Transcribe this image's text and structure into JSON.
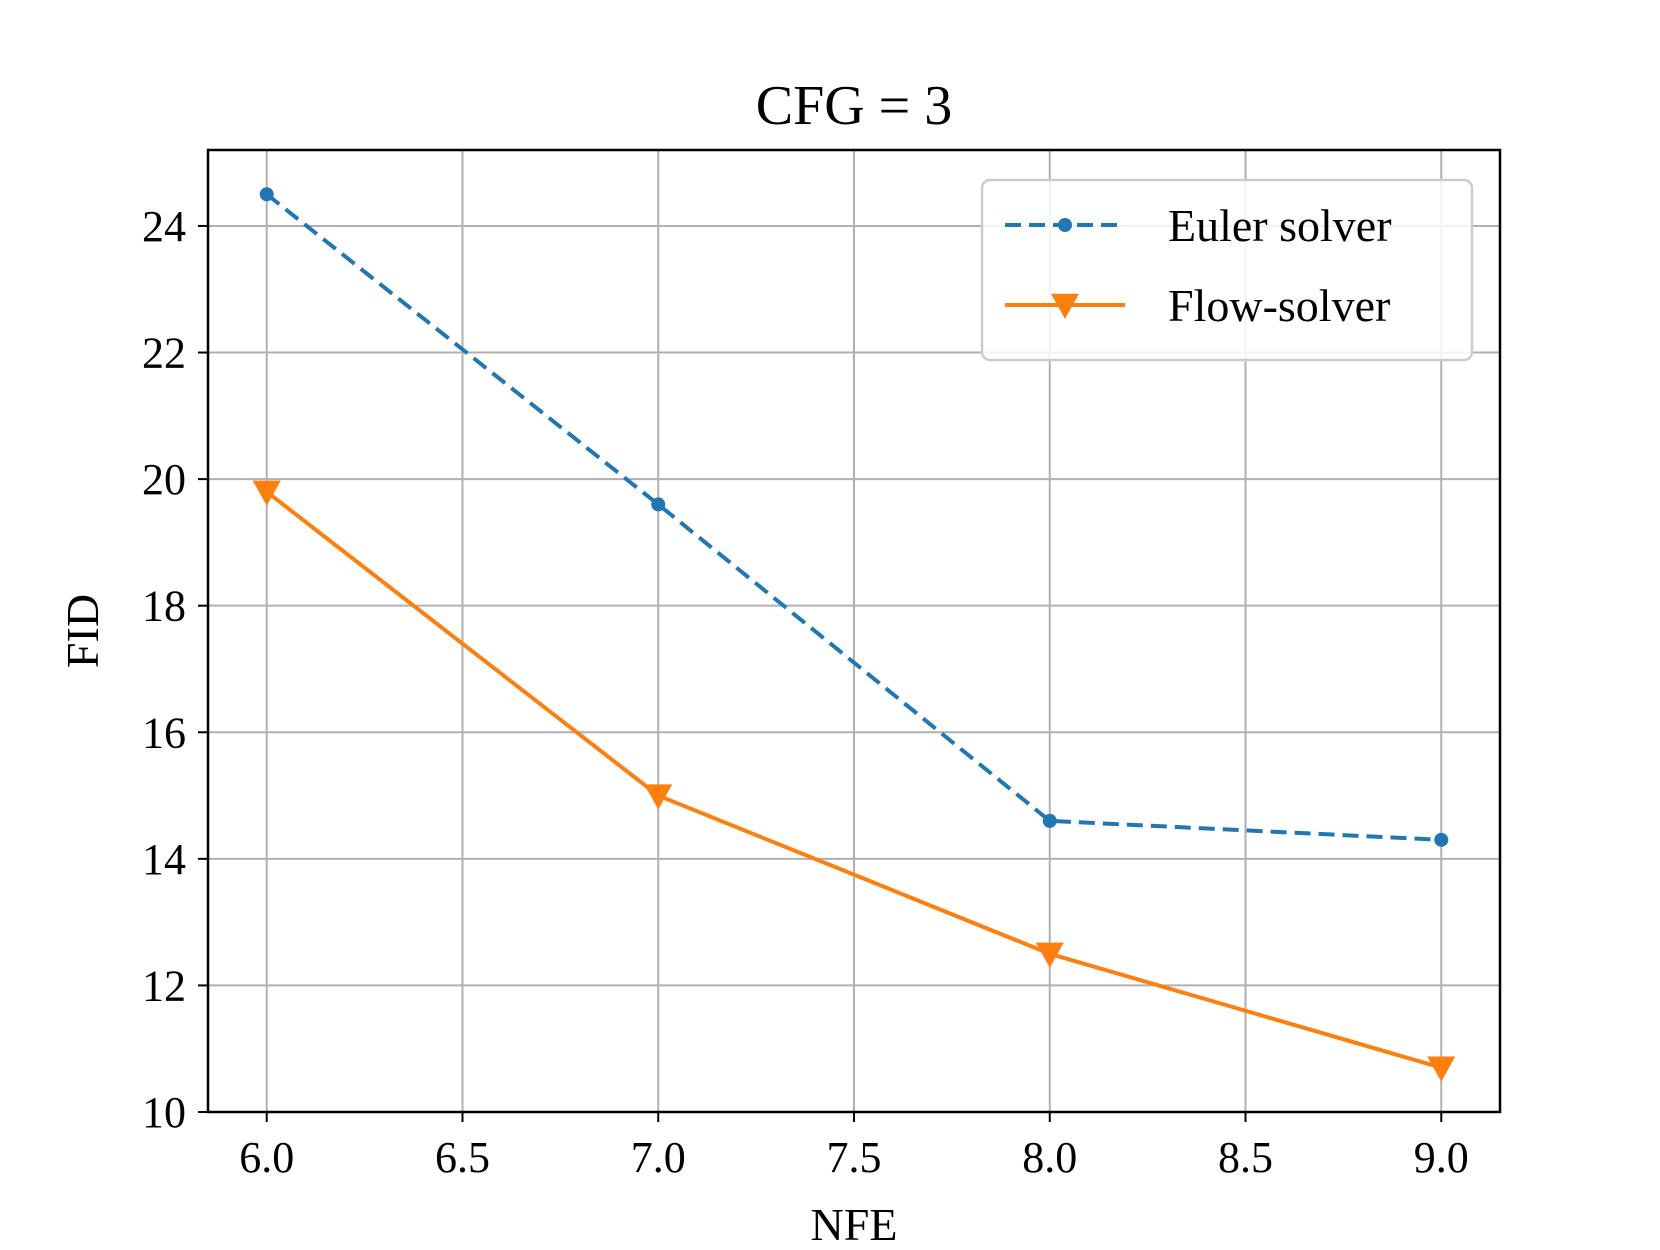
{
  "chart_data": {
    "type": "line",
    "title": "CFG = 3",
    "xlabel": "NFE",
    "ylabel": "FID",
    "xlim": [
      5.85,
      9.15
    ],
    "ylim": [
      10,
      25.2
    ],
    "xticks": [
      6.0,
      6.5,
      7.0,
      7.5,
      8.0,
      8.5,
      9.0
    ],
    "xtick_labels": [
      "6.0",
      "6.5",
      "7.0",
      "7.5",
      "8.0",
      "8.5",
      "9.0"
    ],
    "yticks": [
      10,
      12,
      14,
      16,
      18,
      20,
      22,
      24
    ],
    "ytick_labels": [
      "10",
      "12",
      "14",
      "16",
      "18",
      "20",
      "22",
      "24"
    ],
    "grid": true,
    "legend_position": "top-right",
    "series": [
      {
        "name": "Euler solver",
        "color": "#1f77b4",
        "line_style": "dashed",
        "marker": "circle",
        "x": [
          6.0,
          7.0,
          8.0,
          9.0
        ],
        "y": [
          24.5,
          19.6,
          14.6,
          14.3
        ]
      },
      {
        "name": "Flow-solver",
        "color": "#ff7f0e",
        "line_style": "solid",
        "marker": "triangle-down",
        "x": [
          6.0,
          7.0,
          8.0,
          9.0
        ],
        "y": [
          19.8,
          15.0,
          12.5,
          10.7
        ]
      }
    ]
  }
}
